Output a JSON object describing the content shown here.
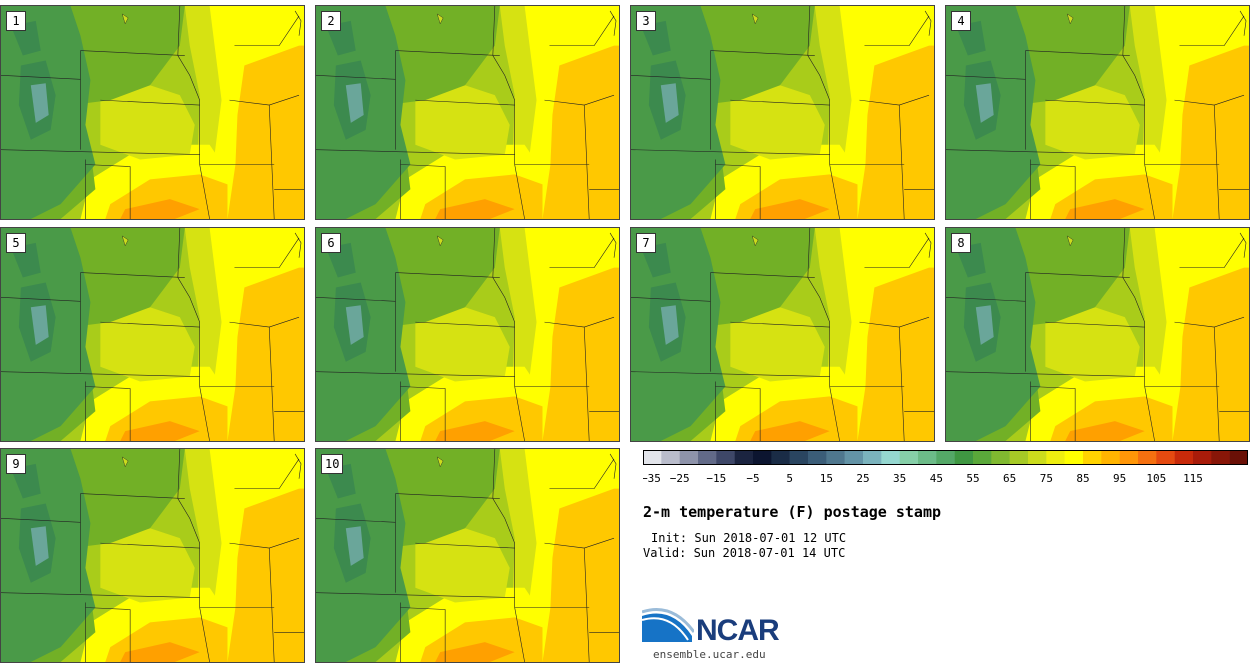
{
  "panels": [
    {
      "label": "1"
    },
    {
      "label": "2"
    },
    {
      "label": "3"
    },
    {
      "label": "4"
    },
    {
      "label": "5"
    },
    {
      "label": "6"
    },
    {
      "label": "7"
    },
    {
      "label": "8"
    },
    {
      "label": "9"
    },
    {
      "label": "10"
    }
  ],
  "colorbar": {
    "ticks": [
      "-35",
      "-25",
      "-15",
      "-5",
      "5",
      "15",
      "25",
      "35",
      "45",
      "55",
      "65",
      "75",
      "85",
      "95",
      "105",
      "115"
    ],
    "colors": [
      "#e2e4ea",
      "#b9bccb",
      "#8e93aa",
      "#626a88",
      "#3e4768",
      "#1b2440",
      "#0c1530",
      "#1a2c46",
      "#2a4560",
      "#3b5d78",
      "#4f778e",
      "#6393a6",
      "#7bb3bd",
      "#95d7d0",
      "#86cfa8",
      "#6cbb88",
      "#54a867",
      "#3f9742",
      "#5aa83a",
      "#80b930",
      "#a6ca26",
      "#cbdc1d",
      "#eeee10",
      "#ffff00",
      "#ffd300",
      "#ffb400",
      "#ff9608",
      "#f57010",
      "#e54a10",
      "#c82a0a",
      "#a81c0a",
      "#881608",
      "#6a1006"
    ]
  },
  "title": "2-m temperature (F) postage stamp",
  "init_line": "Init: Sun 2018-07-01 12 UTC",
  "valid_line": "Valid: Sun 2018-07-01 14 UTC",
  "logo": {
    "word": "NCAR",
    "url": "ensemble.ucar.edu"
  },
  "colors": {
    "mountain": "#4a9a48",
    "high_plains": "#72b026",
    "plains": "#a9cc1a",
    "yellow_green": "#d6e212",
    "yellow": "#ffff00",
    "orange": "#ffc800",
    "hot": "#ffa000",
    "border": "#222222"
  }
}
